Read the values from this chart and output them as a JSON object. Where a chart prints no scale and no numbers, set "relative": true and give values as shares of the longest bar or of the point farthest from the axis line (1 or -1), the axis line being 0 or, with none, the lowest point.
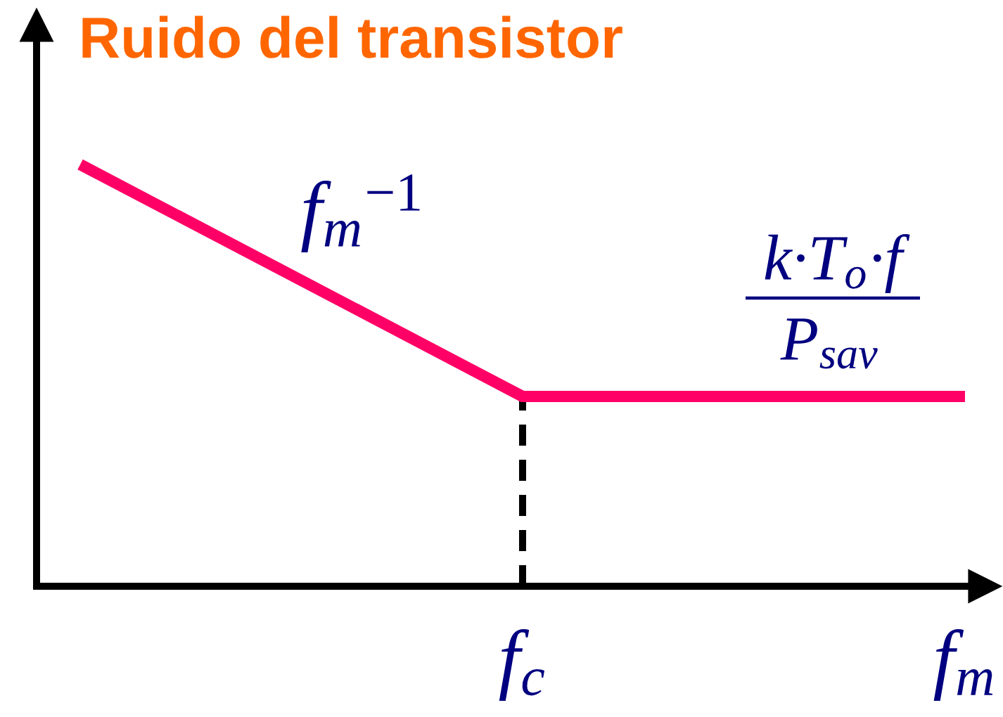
{
  "chart_data": {
    "type": "line",
    "title": "Ruido del transistor",
    "categories": [
      null,
      "f$_{c}$",
      "f$_{m}$"
    ],
    "relative": true,
    "tick_labels": "x",
    "marker": "none",
    "series": [
      {
        "color": "#ff0066",
        "values": [
          1.0,
          0.45,
          0.45
        ],
        "line_style": "solid"
      },
      {
        "type": "line",
        "x": [
          "f$_{c}$",
          "f$_{c}$"
        ],
        "values": [
          0,
          0.45
        ],
        "color": "#000000",
        "line_style": "dashed"
      }
    ],
    "annotations": [
      "f$_{m}$$^{−1}$",
      "k·T$_{o}$·f",
      "P$_{sav}$"
    ]
  }
}
